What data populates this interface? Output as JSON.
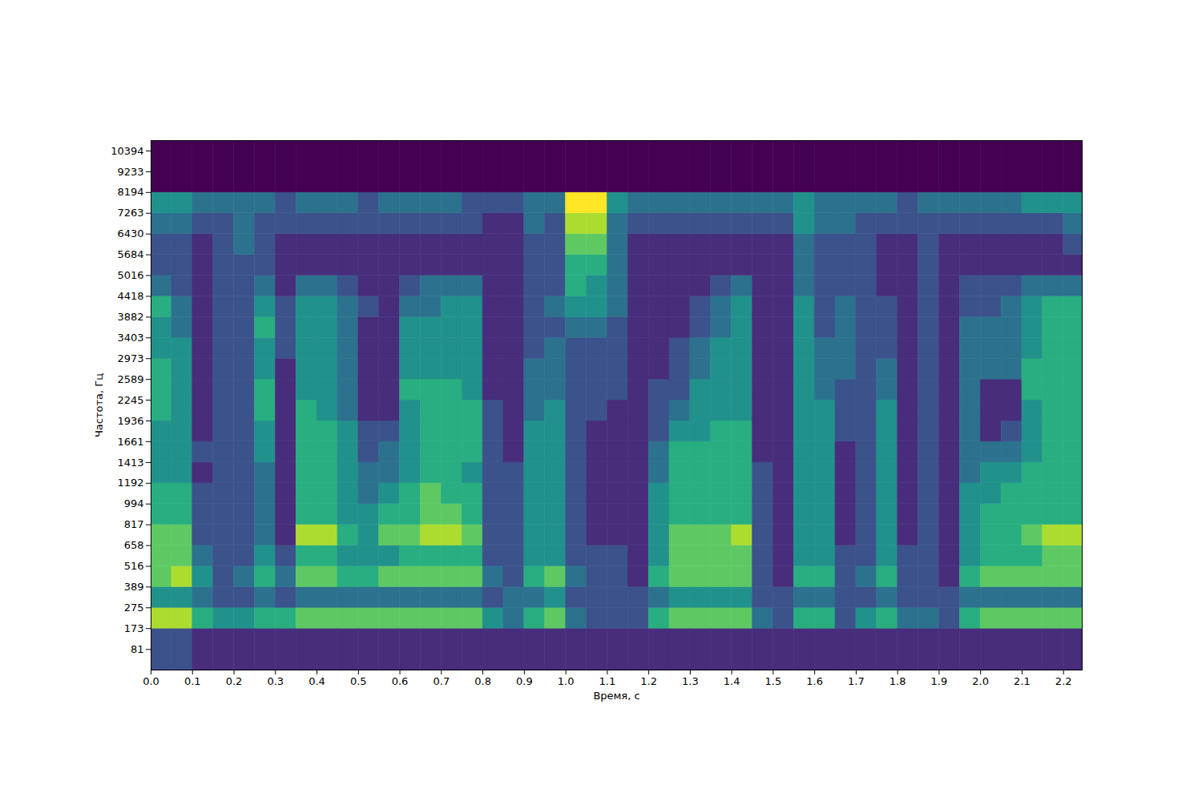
{
  "chart_data": {
    "type": "heatmap",
    "x_label": "Время, с",
    "y_label": "Частота, Гц",
    "log": "y",
    "color": "viridis",
    "grid": false,
    "xlim": [
      0,
      2.245
    ],
    "xticks": [
      {
        "value": 0,
        "label": "0.0"
      },
      0.1,
      0.2,
      0.3,
      0.4,
      0.5,
      0.6,
      0.7,
      0.8,
      0.9,
      {
        "value": 1,
        "label": "1.0"
      },
      1.1,
      1.2,
      1.3,
      1.4,
      1.5,
      1.6,
      1.7,
      1.8,
      1.9,
      {
        "value": 2,
        "label": "2.0"
      },
      2.1,
      2.2
    ],
    "ylim": [
      0,
      11025
    ],
    "yticks": [
      81,
      173,
      275,
      389,
      516,
      658,
      817,
      994,
      1192,
      1413,
      1661,
      1936,
      2245,
      2589,
      2973,
      3403,
      3882,
      4418,
      5016,
      5684,
      6430,
      7263,
      8194,
      9233,
      10394
    ],
    "time_bins": [
      0,
      0.05,
      0.1,
      0.15,
      0.2,
      0.25,
      0.3,
      0.35,
      0.4,
      0.45,
      0.5,
      0.55,
      0.6,
      0.65,
      0.7,
      0.75,
      0.8,
      0.85,
      0.9,
      0.95,
      1.0,
      1.05,
      1.1,
      1.15,
      1.2,
      1.25,
      1.3,
      1.35,
      1.4,
      1.45,
      1.5,
      1.55,
      1.6,
      1.65,
      1.7,
      1.75,
      1.8,
      1.85,
      1.9,
      1.95,
      2.0,
      2.05,
      2.1,
      2.15,
      2.2,
      2.245
    ],
    "freq_bins": [
      0,
      173,
      275,
      389,
      516,
      658,
      817,
      994,
      1192,
      1413,
      1661,
      1936,
      2245,
      2589,
      2973,
      3403,
      3882,
      4418,
      5016,
      5684,
      6430,
      7263,
      8194,
      11025
    ],
    "cells": [
      [
        2,
        7,
        4,
        6,
        6,
        6,
        5,
        5,
        4,
        4,
        4,
        5,
        5,
        5,
        4,
        4,
        5,
        3,
        2,
        2,
        3,
        4,
        0
      ],
      [
        2,
        7,
        4,
        7,
        6,
        6,
        5,
        5,
        4,
        4,
        4,
        4,
        4,
        4,
        4,
        3,
        3,
        2,
        2,
        2,
        3,
        4,
        0
      ],
      [
        1,
        5,
        3,
        4,
        3,
        2,
        2,
        2,
        1,
        2,
        1,
        1,
        1,
        1,
        1,
        1,
        1,
        1,
        1,
        1,
        2,
        3,
        0
      ],
      [
        1,
        4,
        2,
        2,
        2,
        2,
        2,
        2,
        2,
        2,
        2,
        2,
        2,
        2,
        2,
        2,
        2,
        2,
        2,
        2,
        2,
        3,
        0
      ],
      [
        1,
        4,
        2,
        3,
        2,
        2,
        2,
        2,
        2,
        2,
        2,
        2,
        2,
        2,
        2,
        2,
        2,
        2,
        2,
        3,
        3,
        3,
        0
      ],
      [
        1,
        5,
        3,
        5,
        4,
        3,
        3,
        3,
        3,
        4,
        4,
        5,
        5,
        4,
        4,
        5,
        4,
        3,
        2,
        2,
        2,
        3,
        0
      ],
      [
        1,
        5,
        2,
        3,
        2,
        1,
        1,
        1,
        1,
        1,
        1,
        1,
        1,
        1,
        2,
        2,
        2,
        1,
        1,
        1,
        2,
        2,
        0
      ],
      [
        1,
        6,
        3,
        6,
        5,
        7,
        5,
        5,
        5,
        5,
        5,
        5,
        4,
        4,
        4,
        4,
        4,
        3,
        1,
        1,
        2,
        3,
        0
      ],
      [
        1,
        6,
        3,
        6,
        5,
        7,
        5,
        5,
        5,
        5,
        5,
        4,
        4,
        4,
        4,
        4,
        4,
        3,
        1,
        1,
        2,
        3,
        0
      ],
      [
        1,
        6,
        3,
        5,
        4,
        5,
        4,
        4,
        4,
        4,
        4,
        3,
        3,
        3,
        3,
        3,
        3,
        2,
        1,
        1,
        2,
        3,
        0
      ],
      [
        1,
        6,
        3,
        5,
        4,
        4,
        4,
        3,
        3,
        2,
        2,
        1,
        1,
        1,
        1,
        1,
        2,
        1,
        1,
        1,
        2,
        2,
        0
      ],
      [
        1,
        6,
        3,
        6,
        4,
        6,
        5,
        4,
        3,
        3,
        2,
        1,
        1,
        1,
        1,
        1,
        1,
        1,
        1,
        1,
        2,
        3,
        0
      ],
      [
        1,
        6,
        3,
        6,
        5,
        6,
        5,
        5,
        4,
        4,
        4,
        4,
        5,
        4,
        4,
        4,
        3,
        2,
        1,
        1,
        2,
        3,
        0
      ],
      [
        1,
        6,
        3,
        6,
        5,
        7,
        6,
        6,
        5,
        5,
        5,
        5,
        5,
        4,
        4,
        4,
        3,
        3,
        1,
        1,
        2,
        3,
        0
      ],
      [
        1,
        6,
        3,
        6,
        5,
        7,
        6,
        5,
        5,
        5,
        5,
        5,
        5,
        4,
        4,
        4,
        4,
        3,
        1,
        1,
        2,
        3,
        0
      ],
      [
        1,
        6,
        3,
        6,
        5,
        6,
        5,
        5,
        4,
        5,
        5,
        5,
        4,
        4,
        4,
        4,
        4,
        3,
        1,
        1,
        2,
        2,
        0
      ],
      [
        1,
        4,
        2,
        3,
        2,
        2,
        2,
        2,
        2,
        2,
        2,
        2,
        1,
        1,
        1,
        1,
        1,
        1,
        1,
        1,
        1,
        2,
        0
      ],
      [
        1,
        3,
        3,
        2,
        2,
        2,
        2,
        2,
        2,
        1,
        1,
        1,
        1,
        1,
        1,
        1,
        1,
        1,
        1,
        1,
        1,
        2,
        0
      ],
      [
        1,
        5,
        3,
        5,
        4,
        4,
        4,
        4,
        4,
        4,
        4,
        3,
        3,
        3,
        2,
        2,
        2,
        2,
        2,
        2,
        3,
        3,
        0
      ],
      [
        1,
        6,
        4,
        6,
        4,
        4,
        4,
        4,
        4,
        4,
        4,
        4,
        3,
        3,
        3,
        2,
        3,
        2,
        2,
        2,
        2,
        3,
        0
      ],
      [
        1,
        3,
        2,
        3,
        2,
        2,
        2,
        2,
        2,
        2,
        2,
        2,
        2,
        2,
        2,
        3,
        4,
        5,
        5,
        6,
        7,
        8,
        0
      ],
      [
        1,
        2,
        2,
        2,
        2,
        1,
        1,
        1,
        1,
        1,
        1,
        2,
        2,
        2,
        2,
        3,
        4,
        4,
        5,
        6,
        7,
        8,
        0
      ],
      [
        1,
        2,
        2,
        2,
        2,
        1,
        1,
        1,
        1,
        1,
        1,
        1,
        2,
        2,
        2,
        2,
        3,
        3,
        3,
        3,
        3,
        4,
        0
      ],
      [
        1,
        2,
        2,
        1,
        1,
        1,
        1,
        1,
        1,
        1,
        1,
        1,
        1,
        1,
        1,
        1,
        1,
        1,
        1,
        1,
        2,
        3,
        0
      ],
      [
        1,
        5,
        3,
        5,
        4,
        4,
        4,
        4,
        3,
        3,
        2,
        2,
        2,
        1,
        1,
        1,
        1,
        1,
        1,
        1,
        2,
        3,
        0
      ],
      [
        1,
        6,
        4,
        6,
        6,
        6,
        5,
        5,
        5,
        5,
        4,
        3,
        2,
        2,
        2,
        1,
        1,
        1,
        1,
        1,
        2,
        3,
        0
      ],
      [
        1,
        6,
        4,
        6,
        6,
        6,
        5,
        5,
        5,
        5,
        4,
        4,
        4,
        3,
        3,
        2,
        2,
        1,
        1,
        1,
        2,
        3,
        0
      ],
      [
        1,
        6,
        4,
        6,
        6,
        6,
        5,
        5,
        5,
        5,
        5,
        4,
        4,
        4,
        4,
        3,
        3,
        2,
        1,
        1,
        2,
        3,
        0
      ],
      [
        1,
        6,
        4,
        6,
        6,
        7,
        5,
        5,
        5,
        5,
        5,
        4,
        4,
        4,
        4,
        4,
        4,
        3,
        1,
        1,
        2,
        3,
        0
      ],
      [
        1,
        3,
        2,
        2,
        2,
        2,
        2,
        2,
        2,
        1,
        1,
        1,
        1,
        1,
        1,
        1,
        1,
        1,
        1,
        1,
        2,
        3,
        0
      ],
      [
        1,
        2,
        2,
        1,
        1,
        1,
        1,
        1,
        1,
        1,
        1,
        1,
        1,
        1,
        1,
        1,
        1,
        1,
        1,
        1,
        2,
        3,
        0
      ],
      [
        1,
        5,
        3,
        5,
        4,
        4,
        4,
        4,
        4,
        4,
        4,
        4,
        4,
        4,
        4,
        4,
        4,
        3,
        3,
        3,
        4,
        4,
        0
      ],
      [
        1,
        5,
        3,
        5,
        4,
        4,
        4,
        4,
        4,
        4,
        4,
        4,
        3,
        3,
        3,
        2,
        2,
        2,
        2,
        2,
        3,
        3,
        0
      ],
      [
        1,
        2,
        2,
        2,
        2,
        1,
        1,
        1,
        1,
        1,
        2,
        2,
        2,
        3,
        3,
        3,
        3,
        2,
        2,
        2,
        3,
        3,
        0
      ],
      [
        1,
        4,
        2,
        3,
        2,
        2,
        2,
        2,
        2,
        2,
        2,
        2,
        2,
        2,
        2,
        2,
        2,
        2,
        2,
        2,
        2,
        3,
        0
      ],
      [
        1,
        5,
        3,
        5,
        4,
        4,
        4,
        4,
        4,
        4,
        4,
        4,
        3,
        3,
        2,
        2,
        2,
        1,
        1,
        1,
        2,
        3,
        0
      ],
      [
        1,
        3,
        2,
        2,
        2,
        1,
        1,
        1,
        1,
        1,
        1,
        1,
        1,
        1,
        1,
        1,
        1,
        1,
        1,
        1,
        2,
        2,
        0
      ],
      [
        1,
        3,
        2,
        2,
        2,
        2,
        2,
        2,
        2,
        2,
        2,
        2,
        2,
        2,
        2,
        2,
        2,
        2,
        2,
        2,
        2,
        3,
        0
      ],
      [
        1,
        2,
        2,
        1,
        1,
        1,
        1,
        1,
        1,
        1,
        1,
        1,
        1,
        1,
        1,
        1,
        1,
        1,
        1,
        1,
        2,
        3,
        0
      ],
      [
        1,
        5,
        3,
        5,
        4,
        4,
        4,
        4,
        3,
        3,
        3,
        3,
        3,
        3,
        3,
        3,
        2,
        2,
        1,
        1,
        2,
        3,
        0
      ],
      [
        1,
        6,
        3,
        6,
        5,
        5,
        5,
        4,
        4,
        3,
        1,
        1,
        1,
        3,
        3,
        3,
        2,
        2,
        1,
        1,
        2,
        3,
        0
      ],
      [
        1,
        6,
        3,
        6,
        5,
        5,
        5,
        5,
        4,
        3,
        2,
        1,
        1,
        3,
        3,
        3,
        3,
        2,
        1,
        1,
        2,
        3,
        0
      ],
      [
        1,
        6,
        3,
        6,
        5,
        6,
        5,
        5,
        5,
        4,
        4,
        4,
        5,
        5,
        4,
        4,
        4,
        3,
        1,
        1,
        2,
        4,
        0
      ],
      [
        1,
        6,
        3,
        6,
        6,
        7,
        5,
        5,
        5,
        5,
        5,
        5,
        5,
        5,
        5,
        5,
        5,
        3,
        1,
        1,
        2,
        4,
        0
      ],
      [
        1,
        6,
        3,
        6,
        6,
        7,
        5,
        5,
        5,
        5,
        5,
        5,
        5,
        5,
        5,
        5,
        5,
        3,
        1,
        2,
        3,
        4,
        0
      ]
    ]
  }
}
